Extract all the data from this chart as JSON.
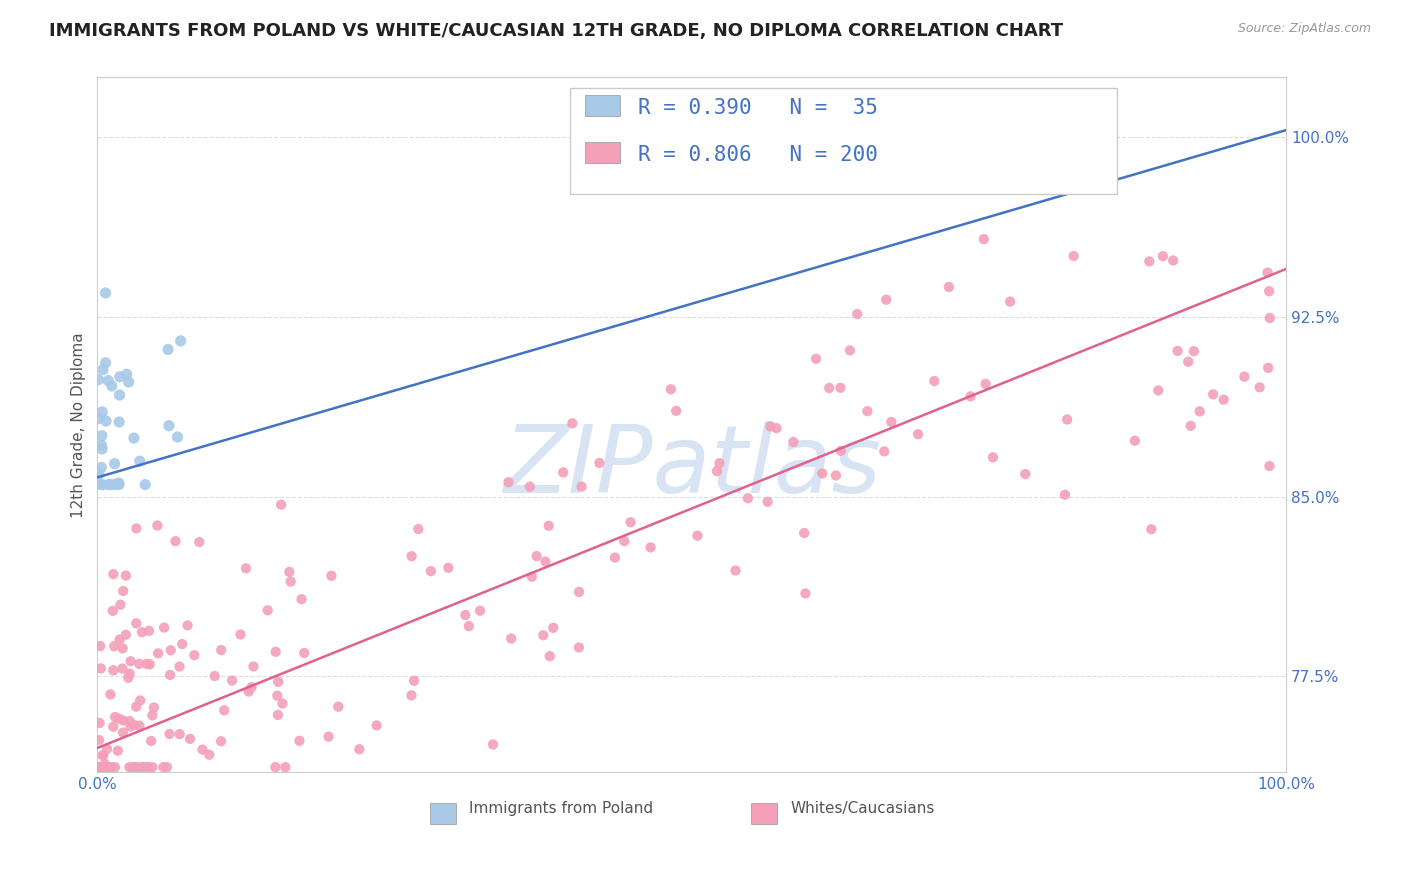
{
  "title": "IMMIGRANTS FROM POLAND VS WHITE/CAUCASIAN 12TH GRADE, NO DIPLOMA CORRELATION CHART",
  "source": "Source: ZipAtlas.com",
  "ylabel": "12th Grade, No Diploma",
  "background_color": "#ffffff",
  "plot_bg_color": "#ffffff",
  "grid_color": "#dddddd",
  "xlim": [
    0,
    1
  ],
  "ylim": [
    0.735,
    1.025
  ],
  "xtick_labels": [
    "0.0%",
    "100.0%"
  ],
  "ytick_labels": [
    "77.5%",
    "85.0%",
    "92.5%",
    "100.0%"
  ],
  "ytick_values": [
    0.775,
    0.85,
    0.925,
    1.0
  ],
  "xtick_values": [
    0.0,
    1.0
  ],
  "legend_R1": "R = 0.390",
  "legend_N1": "N =  35",
  "legend_R2": "R = 0.806",
  "legend_N2": "N = 200",
  "color_blue": "#A8C8E8",
  "color_pink": "#F4A0B8",
  "line_blue": "#4472C4",
  "line_pink": "#E06090",
  "watermark_color": "#C8D8EE",
  "title_fontsize": 13,
  "axis_label_fontsize": 11,
  "tick_fontsize": 11,
  "legend_fontsize": 15,
  "source_color": "#999999",
  "title_color": "#222222",
  "tick_color": "#4472C4",
  "blue_line_y0": 0.858,
  "blue_line_y1": 1.003,
  "pink_line_y0": 0.745,
  "pink_line_y1": 0.945
}
